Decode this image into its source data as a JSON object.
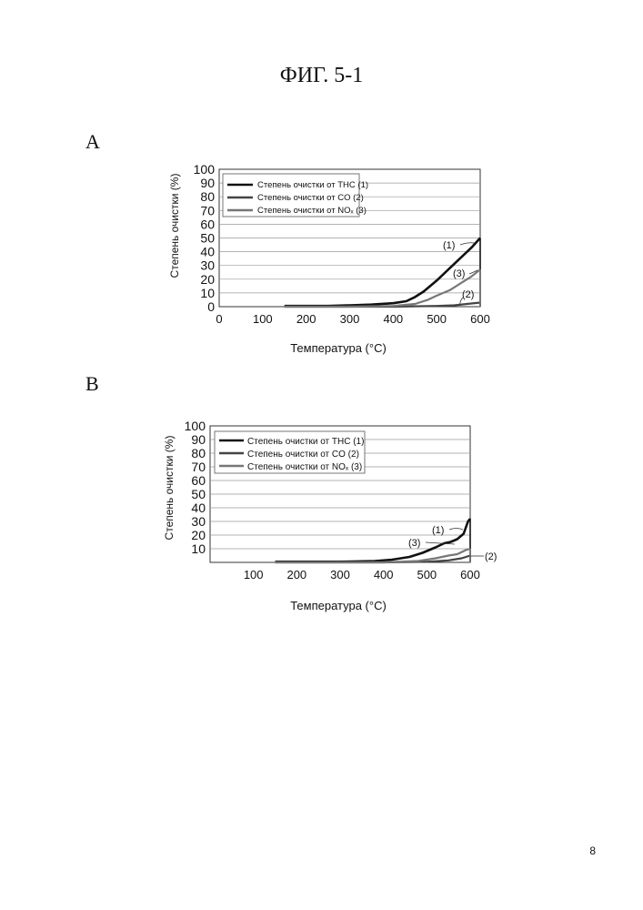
{
  "page": {
    "figure_title": "ФИГ. 5-1",
    "page_number": "8"
  },
  "panels": [
    {
      "label": "A"
    },
    {
      "label": "B"
    }
  ],
  "chart_data": [
    {
      "type": "line",
      "title": "",
      "xlabel": "Температура (°C)",
      "ylabel": "Степень очистки   (%)",
      "xlim": [
        0,
        600
      ],
      "ylim": [
        0,
        100
      ],
      "xticks": [
        "0",
        "100",
        "200",
        "300",
        "400",
        "500",
        "600"
      ],
      "yticks": [
        "0",
        "10",
        "20",
        "30",
        "40",
        "50",
        "60",
        "70",
        "80",
        "90",
        "100"
      ],
      "legend": [
        {
          "text": "Степень очистки от THC (1)",
          "color": "#111111"
        },
        {
          "text": "Степень очистки от CO (2)",
          "color": "#444444"
        },
        {
          "text": "Степень очистки от NOₓ (3)",
          "color": "#777777"
        }
      ],
      "annotations": [
        "(1)",
        "(3)",
        "(2)"
      ],
      "series": [
        {
          "name": "Степень очистки от THC (1)",
          "color": "#111111",
          "x": [
            150,
            200,
            250,
            300,
            350,
            400,
            430,
            450,
            470,
            500,
            530,
            560,
            580,
            600
          ],
          "y": [
            0.5,
            0.5,
            0.5,
            1,
            1.5,
            2.5,
            4,
            7,
            11,
            19,
            28,
            37,
            43,
            50
          ]
        },
        {
          "name": "Степень очистки от CO (2)",
          "color": "#444444",
          "x": [
            150,
            300,
            400,
            500,
            540,
            570,
            600
          ],
          "y": [
            0,
            0,
            0,
            0.5,
            1,
            2,
            3
          ]
        },
        {
          "name": "Степень очистки от NOₓ (3)",
          "color": "#777777",
          "x": [
            150,
            300,
            400,
            450,
            480,
            500,
            530,
            560,
            580,
            600
          ],
          "y": [
            0,
            0,
            0.5,
            2,
            5,
            8,
            12,
            18,
            22,
            27
          ]
        }
      ]
    },
    {
      "type": "line",
      "title": "",
      "xlabel": "Температура (°C)",
      "ylabel": "Степень очистки   (%)",
      "xlim": [
        0,
        600
      ],
      "ylim": [
        0,
        100
      ],
      "xticks": [
        "100",
        "200",
        "300",
        "400",
        "500",
        "600"
      ],
      "yticks": [
        "10",
        "20",
        "30",
        "40",
        "50",
        "60",
        "70",
        "80",
        "90",
        "100"
      ],
      "legend": [
        {
          "text": "Степень очистки от THC (1)",
          "color": "#111111"
        },
        {
          "text": "Степень очистки от CO (2)",
          "color": "#444444"
        },
        {
          "text": "Степень очистки от NOₓ (3)",
          "color": "#777777"
        }
      ],
      "annotations": [
        "(1)",
        "(3)",
        "(2)"
      ],
      "series": [
        {
          "name": "Степень очистки от THC (1)",
          "color": "#111111",
          "x": [
            150,
            300,
            380,
            420,
            460,
            490,
            520,
            540,
            555,
            570,
            585,
            595,
            600
          ],
          "y": [
            0.5,
            0.5,
            1,
            2,
            4,
            7,
            11,
            14,
            15,
            17,
            21,
            30,
            32
          ]
        },
        {
          "name": "Степень очистки от CO (2)",
          "color": "#444444",
          "x": [
            150,
            400,
            500,
            550,
            580,
            600
          ],
          "y": [
            0,
            0,
            0.5,
            1.5,
            3,
            5
          ]
        },
        {
          "name": "Степень очистки от NOₓ (3)",
          "color": "#777777",
          "x": [
            150,
            400,
            480,
            520,
            550,
            570,
            590,
            600
          ],
          "y": [
            0,
            0,
            1,
            3,
            5,
            6,
            9,
            10
          ]
        }
      ]
    }
  ]
}
